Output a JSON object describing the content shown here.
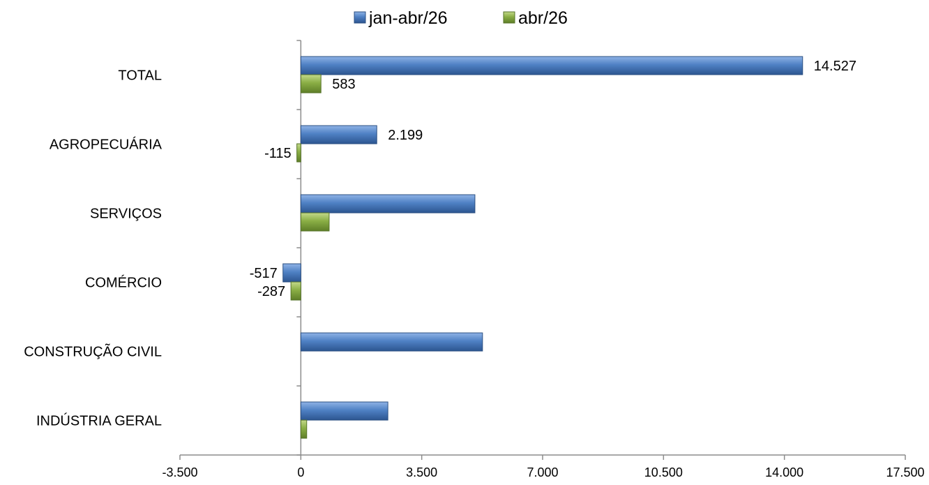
{
  "chart_data": {
    "type": "bar",
    "orientation": "horizontal",
    "categories": [
      "TOTAL",
      "AGROPECUÁRIA",
      "SERVIÇOS",
      "COMÉRCIO",
      "CONSTRUÇÃO CIVIL",
      "INDÚSTRIA GERAL"
    ],
    "series": [
      {
        "name": "jan-abr/26",
        "color": "#4A7EBB",
        "values": [
          14527,
          2199,
          5040,
          -517,
          5260,
          2520
        ],
        "labels": [
          "14.527",
          "2.199",
          "",
          "-517",
          "",
          ""
        ]
      },
      {
        "name": "abr/26",
        "color": "#8AAE45",
        "values": [
          583,
          -115,
          820,
          -287,
          0,
          170
        ],
        "labels": [
          "583",
          "-115",
          "",
          "-287",
          "",
          ""
        ]
      }
    ],
    "xlim": [
      -3500,
      17500
    ],
    "xticks": [
      -3500,
      0,
      3500,
      7000,
      10500,
      14000,
      17500
    ],
    "xtick_labels": [
      "-3.500",
      "0",
      "3.500",
      "7.000",
      "10.500",
      "14.000",
      "17.500"
    ],
    "legend_position": "top",
    "grid": false
  }
}
